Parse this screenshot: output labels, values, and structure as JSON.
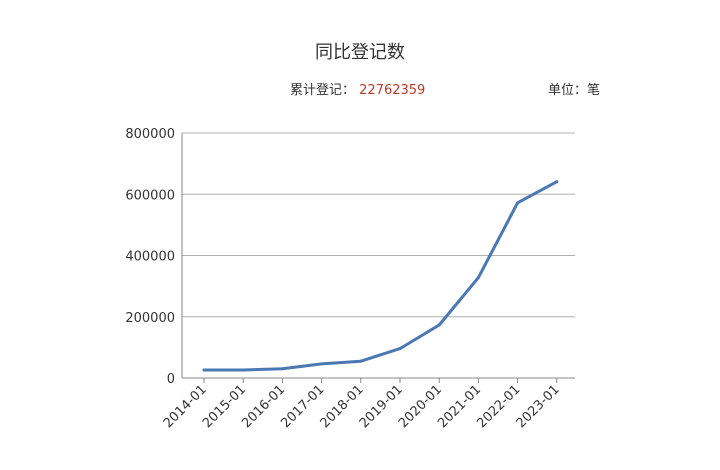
{
  "chart_data": {
    "type": "line",
    "title": "同比登记数",
    "cumulative_label": "累计登记：",
    "cumulative_value": "22762359",
    "unit_label": "单位：笔",
    "x": [
      "2014-01",
      "2015-01",
      "2016-01",
      "2017-01",
      "2018-01",
      "2019-01",
      "2020-01",
      "2021-01",
      "2022-01",
      "2023-01"
    ],
    "series": [
      {
        "values": [
          26000,
          26000,
          30000,
          46000,
          55000,
          96000,
          173000,
          328000,
          572000,
          641000
        ],
        "color": "#4a78b4"
      }
    ],
    "yticks": [
      "800000",
      "600000",
      "400000",
      "200000",
      "0"
    ],
    "ylim": [
      0,
      800000
    ],
    "grid": true,
    "legend": "none"
  }
}
